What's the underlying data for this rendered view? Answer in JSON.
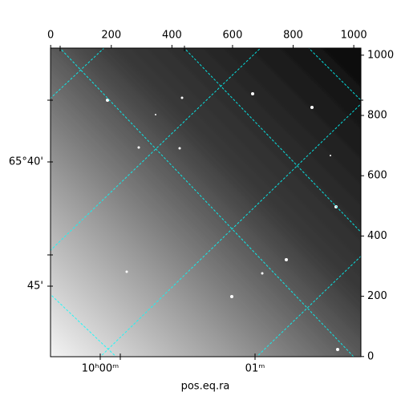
{
  "chart_data": {
    "type": "image",
    "xlabel": "pos.eq.ra",
    "xlim": [
      -0.5,
      1023.5
    ],
    "ylim": [
      -0.5,
      1023.5
    ],
    "xticks": [
      0,
      200,
      400,
      600,
      800,
      1000
    ],
    "yticks": [
      0,
      200,
      400,
      600,
      800,
      1000
    ],
    "dec_labels": [
      "65°40'",
      "45'"
    ],
    "ra_labels": [
      "10ʰ00ᵐ",
      "01ᵐ"
    ],
    "colormap": "gray",
    "grid_color": "#00ffff"
  }
}
